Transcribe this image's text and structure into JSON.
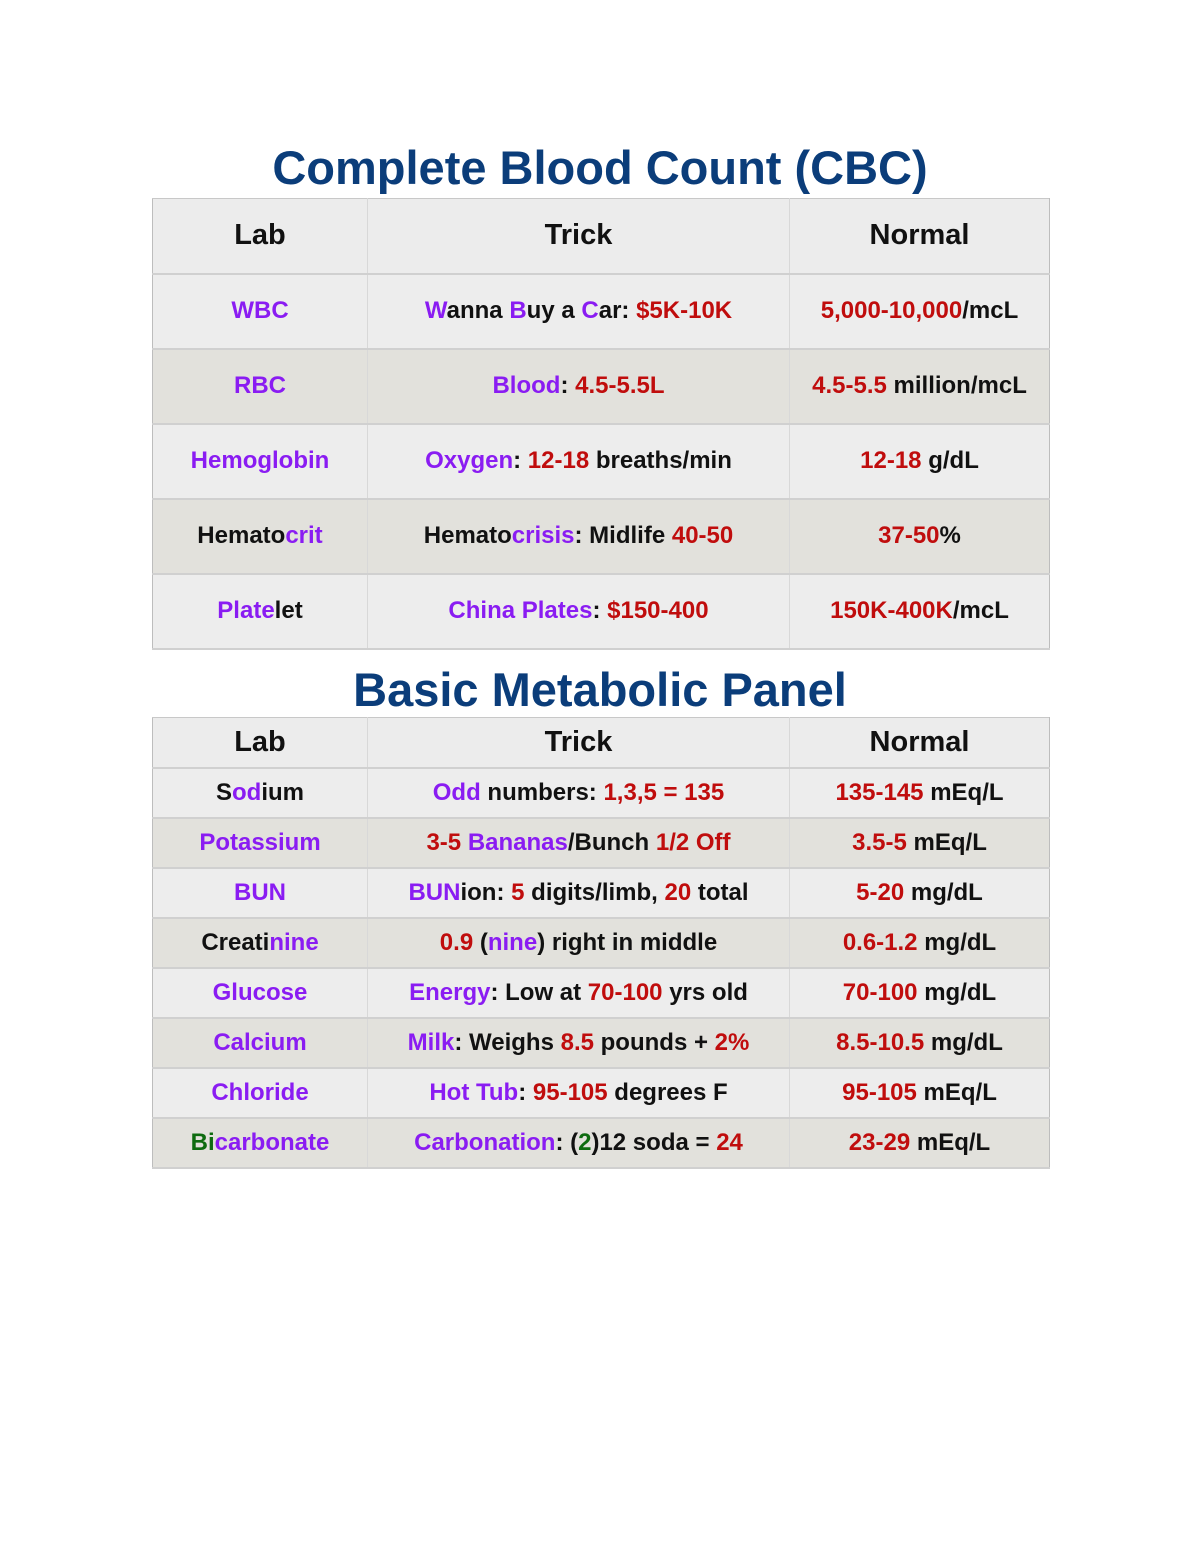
{
  "colors": {
    "k": "#111111",
    "p": "#8a1cf2",
    "r": "#c00d0d",
    "g": "#0e6b10",
    "title": "#0b3d7a"
  },
  "cbc": {
    "title": "Complete Blood Count (CBC)",
    "headers": [
      "Lab",
      "Trick",
      "Normal"
    ],
    "rows": [
      [
        [
          [
            "p",
            "WBC"
          ]
        ],
        [
          [
            "p",
            "W"
          ],
          [
            "k",
            "anna "
          ],
          [
            "p",
            "B"
          ],
          [
            "k",
            "uy a "
          ],
          [
            "p",
            "C"
          ],
          [
            "k",
            "ar: "
          ],
          [
            "r",
            "$5K-10K"
          ]
        ],
        [
          [
            "r",
            "5,000-10,000"
          ],
          [
            "k",
            "/mcL"
          ]
        ]
      ],
      [
        [
          [
            "p",
            "RBC"
          ]
        ],
        [
          [
            "p",
            "Blood"
          ],
          [
            "k",
            ": "
          ],
          [
            "r",
            "4.5-5.5L"
          ]
        ],
        [
          [
            "r",
            "4.5-5.5"
          ],
          [
            "k",
            " million/mcL"
          ]
        ]
      ],
      [
        [
          [
            "p",
            "Hemoglobin"
          ]
        ],
        [
          [
            "p",
            "Oxygen"
          ],
          [
            "k",
            ": "
          ],
          [
            "r",
            "12-18"
          ],
          [
            "k",
            " breaths/min"
          ]
        ],
        [
          [
            "r",
            "12-18"
          ],
          [
            "k",
            " g/dL"
          ]
        ]
      ],
      [
        [
          [
            "k",
            "Hemato"
          ],
          [
            "p",
            "crit"
          ]
        ],
        [
          [
            "k",
            "Hemato"
          ],
          [
            "p",
            "crisis"
          ],
          [
            "k",
            ": Midlife "
          ],
          [
            "r",
            "40-50"
          ]
        ],
        [
          [
            "r",
            "37-50"
          ],
          [
            "k",
            "%"
          ]
        ]
      ],
      [
        [
          [
            "p",
            "Plate"
          ],
          [
            "k",
            "let"
          ]
        ],
        [
          [
            "p",
            "China Plates"
          ],
          [
            "k",
            ": "
          ],
          [
            "r",
            "$150-400"
          ]
        ],
        [
          [
            "r",
            "150K-400K"
          ],
          [
            "k",
            "/mcL"
          ]
        ]
      ]
    ]
  },
  "bmp": {
    "title": "Basic Metabolic Panel",
    "headers": [
      "Lab",
      "Trick",
      "Normal"
    ],
    "rows": [
      [
        [
          [
            "k",
            "S"
          ],
          [
            "p",
            "od"
          ],
          [
            "k",
            "ium"
          ]
        ],
        [
          [
            "p",
            "Odd"
          ],
          [
            "k",
            " numbers: "
          ],
          [
            "r",
            "1,3,5 = 135"
          ]
        ],
        [
          [
            "r",
            "135-145"
          ],
          [
            "k",
            " mEq/L"
          ]
        ]
      ],
      [
        [
          [
            "p",
            "Potassium"
          ]
        ],
        [
          [
            "r",
            "3-5 "
          ],
          [
            "p",
            "Bananas"
          ],
          [
            "k",
            "/Bunch "
          ],
          [
            "r",
            "1/2 Off"
          ]
        ],
        [
          [
            "r",
            "3.5-5"
          ],
          [
            "k",
            " mEq/L"
          ]
        ]
      ],
      [
        [
          [
            "p",
            "BUN"
          ]
        ],
        [
          [
            "p",
            "BUN"
          ],
          [
            "k",
            "ion: "
          ],
          [
            "r",
            "5"
          ],
          [
            "k",
            " digits/limb, "
          ],
          [
            "r",
            "20"
          ],
          [
            "k",
            " total"
          ]
        ],
        [
          [
            "r",
            "5-20"
          ],
          [
            "k",
            " mg/dL"
          ]
        ]
      ],
      [
        [
          [
            "k",
            "Creati"
          ],
          [
            "p",
            "nine"
          ]
        ],
        [
          [
            "r",
            "0.9"
          ],
          [
            "k",
            " ("
          ],
          [
            "p",
            "nine"
          ],
          [
            "k",
            ") right in middle"
          ]
        ],
        [
          [
            "r",
            "0.6-1.2"
          ],
          [
            "k",
            " mg/dL"
          ]
        ]
      ],
      [
        [
          [
            "p",
            "Glucose"
          ]
        ],
        [
          [
            "p",
            "Energy"
          ],
          [
            "k",
            ": Low at "
          ],
          [
            "r",
            "70-100"
          ],
          [
            "k",
            " yrs old"
          ]
        ],
        [
          [
            "r",
            "70-100"
          ],
          [
            "k",
            " mg/dL"
          ]
        ]
      ],
      [
        [
          [
            "p",
            "Calcium"
          ]
        ],
        [
          [
            "p",
            "Milk"
          ],
          [
            "k",
            ": Weighs "
          ],
          [
            "r",
            "8.5"
          ],
          [
            "k",
            " pounds + "
          ],
          [
            "r",
            "2%"
          ]
        ],
        [
          [
            "r",
            "8.5-10.5"
          ],
          [
            "k",
            " mg/dL"
          ]
        ]
      ],
      [
        [
          [
            "p",
            "Chloride"
          ]
        ],
        [
          [
            "p",
            "Hot Tub"
          ],
          [
            "k",
            ": "
          ],
          [
            "r",
            "95-105"
          ],
          [
            "k",
            " degrees F"
          ]
        ],
        [
          [
            "r",
            "95-105"
          ],
          [
            "k",
            " mEq/L"
          ]
        ]
      ],
      [
        [
          [
            "g",
            "Bi"
          ],
          [
            "p",
            "carbonate"
          ]
        ],
        [
          [
            "p",
            "Carbonation"
          ],
          [
            "k",
            ": ("
          ],
          [
            "g",
            "2"
          ],
          [
            "k",
            ")12 soda = "
          ],
          [
            "r",
            "24"
          ]
        ],
        [
          [
            "r",
            "23-29"
          ],
          [
            "k",
            " mEq/L"
          ]
        ]
      ]
    ]
  }
}
